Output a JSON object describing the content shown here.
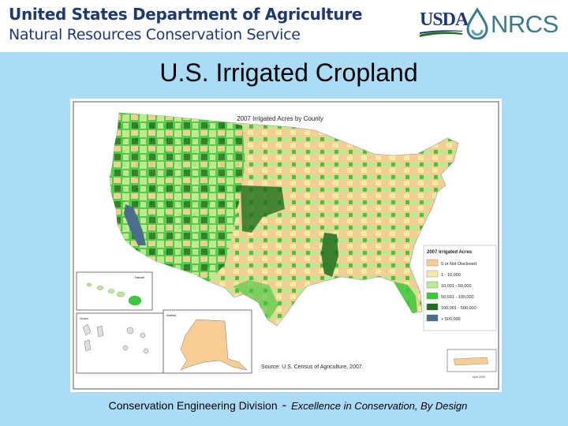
{
  "header": {
    "agency_line1": "United States Department of Agriculture",
    "agency_line2": "Natural Resources Conservation Service",
    "logo_usda": "USDA",
    "logo_nrcs": "NRCS",
    "logo_icons": [
      "water-drop-icon",
      "usda-swoosh-icon"
    ],
    "colors": {
      "agency_blue": "#1d3a6e",
      "nrcs_teal": "#3b7a8c"
    }
  },
  "slide": {
    "title": "U.S. Irrigated Cropland",
    "background": "#aadcf8"
  },
  "map": {
    "title": "2007 Irrigated Acres by County",
    "source": "Source:  U.S. Census of Agriculture, 2007.",
    "date": "April 2009",
    "inset_labels": {
      "hawaii": "Hawaii",
      "alaska": "Alaska",
      "guam": "Guam"
    },
    "legend": {
      "title": "2007 Irrigated Acres",
      "items": [
        {
          "label": "0 or Not Disclosed",
          "color": "#f8cd94"
        },
        {
          "label": "1 - 10,000",
          "color": "#f6eaa4"
        },
        {
          "label": "10,001 - 50,000",
          "color": "#b8ec90"
        },
        {
          "label": "50,001 - 100,000",
          "color": "#3cc83c"
        },
        {
          "label": "100,001 - 500,000",
          "color": "#1d6e1d"
        },
        {
          "label": "> 500,000",
          "color": "#4a6e8c"
        }
      ]
    }
  },
  "footer": {
    "division": "Conservation Engineering Division",
    "separator": "-",
    "tagline": "Excellence in Conservation, By Design"
  }
}
